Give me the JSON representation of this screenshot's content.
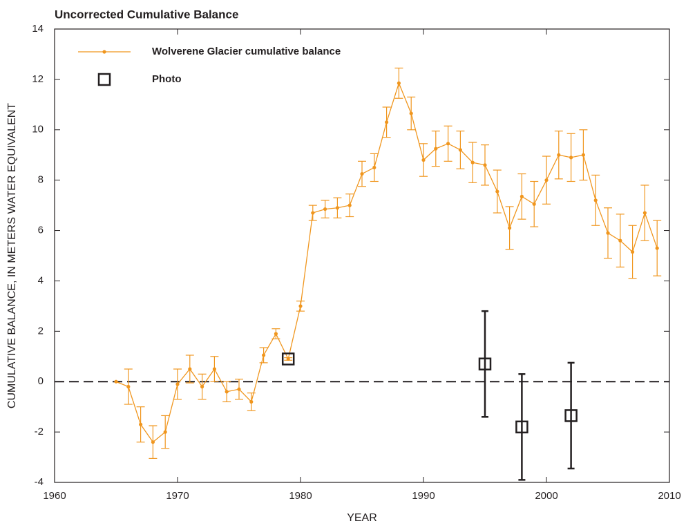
{
  "chart_data": {
    "type": "line",
    "title": "Uncorrected Cumulative Balance",
    "xlabel": "YEAR",
    "ylabel": "CUMULATIVE BALANCE,  IN METERS WATER EQUIVALENT",
    "xlim": [
      1960,
      2010
    ],
    "xticks": [
      1960,
      1970,
      1980,
      1990,
      2000,
      2010
    ],
    "ylim": [
      -4,
      14
    ],
    "yticks": [
      -4,
      -2,
      0,
      2,
      4,
      6,
      8,
      10,
      12,
      14
    ],
    "reference_line": 0,
    "legend": "upper left",
    "series": [
      {
        "name": "Wolverene Glacier cumulative balance",
        "color": "#f0961e",
        "marker": "dot",
        "x": [
          1965,
          1966,
          1967,
          1968,
          1969,
          1970,
          1971,
          1972,
          1973,
          1974,
          1975,
          1976,
          1977,
          1978,
          1979,
          1980,
          1981,
          1982,
          1983,
          1984,
          1985,
          1986,
          1987,
          1988,
          1989,
          1990,
          1991,
          1992,
          1993,
          1994,
          1995,
          1996,
          1997,
          1998,
          1999,
          2000,
          2001,
          2002,
          2003,
          2004,
          2005,
          2006,
          2007,
          2008,
          2009
        ],
        "values": [
          0.0,
          -0.2,
          -1.7,
          -2.4,
          -2.0,
          -0.1,
          0.5,
          -0.2,
          0.5,
          -0.4,
          -0.3,
          -0.8,
          1.05,
          1.9,
          0.9,
          3.0,
          6.7,
          6.85,
          6.9,
          7.0,
          8.25,
          8.5,
          10.3,
          11.85,
          10.65,
          8.8,
          9.25,
          9.45,
          9.2,
          8.7,
          8.6,
          7.55,
          6.1,
          7.35,
          7.05,
          8.0,
          9.0,
          8.9,
          9.0,
          7.2,
          5.9,
          5.6,
          5.15,
          6.7,
          5.3
        ],
        "errors": [
          0,
          0.7,
          0.7,
          0.65,
          0.65,
          0.6,
          0.55,
          0.5,
          0.5,
          0.4,
          0.4,
          0.35,
          0.3,
          0.2,
          0.05,
          0.2,
          0.3,
          0.35,
          0.4,
          0.45,
          0.5,
          0.55,
          0.6,
          0.6,
          0.65,
          0.65,
          0.7,
          0.7,
          0.75,
          0.8,
          0.8,
          0.85,
          0.85,
          0.9,
          0.9,
          0.95,
          0.95,
          0.95,
          1.0,
          1.0,
          1.0,
          1.05,
          1.05,
          1.1,
          1.1
        ]
      },
      {
        "name": "Photo",
        "color": "#231f20",
        "marker": "square",
        "x": [
          1979,
          1995,
          1998,
          2002
        ],
        "values": [
          0.9,
          0.7,
          -1.8,
          -1.35
        ],
        "errors": [
          0,
          2.1,
          2.1,
          2.1
        ]
      }
    ]
  }
}
